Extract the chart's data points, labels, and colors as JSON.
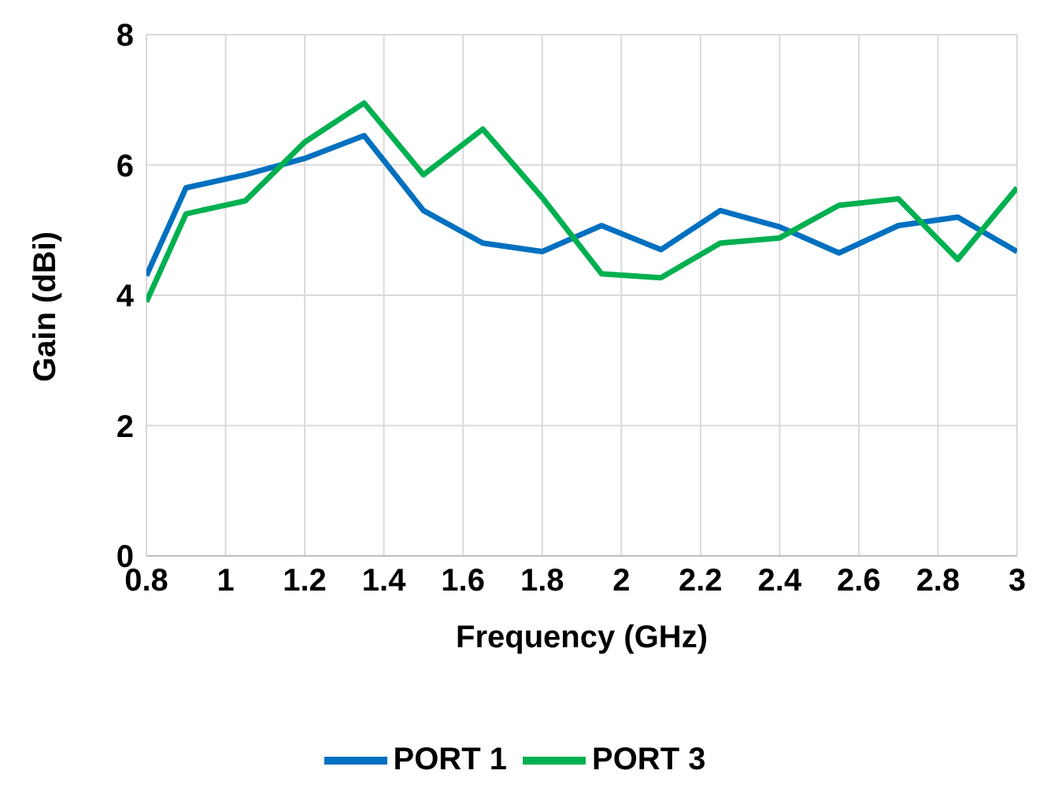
{
  "chart_data": {
    "type": "line",
    "xlabel": "Frequency (GHz)",
    "ylabel": "Gain (dBi)",
    "x": [
      0.8,
      0.9,
      1.05,
      1.2,
      1.35,
      1.5,
      1.65,
      1.8,
      1.95,
      2.1,
      2.25,
      2.4,
      2.55,
      2.7,
      2.85,
      3.0
    ],
    "series": [
      {
        "name": "PORT 1",
        "color": "#0070c0",
        "values": [
          4.3,
          5.65,
          5.85,
          6.1,
          6.45,
          5.3,
          4.8,
          4.67,
          5.07,
          4.7,
          5.3,
          5.05,
          4.65,
          5.07,
          5.2,
          4.67
        ]
      },
      {
        "name": "PORT 3",
        "color": "#00b050",
        "values": [
          3.9,
          5.25,
          5.45,
          6.35,
          6.95,
          5.85,
          6.55,
          5.5,
          4.33,
          4.27,
          4.8,
          4.88,
          5.38,
          5.48,
          4.55,
          5.65
        ]
      }
    ],
    "xlim": [
      0.8,
      3
    ],
    "xticks": [
      0.8,
      1,
      1.2,
      1.4,
      1.6,
      1.8,
      2,
      2.2,
      2.4,
      2.6,
      2.8,
      3
    ],
    "ylim": [
      0,
      8
    ],
    "yticks": [
      0,
      2,
      4,
      6,
      8
    ],
    "grid": true,
    "legend": "bottom",
    "marker": "none",
    "line_style": "solid"
  }
}
